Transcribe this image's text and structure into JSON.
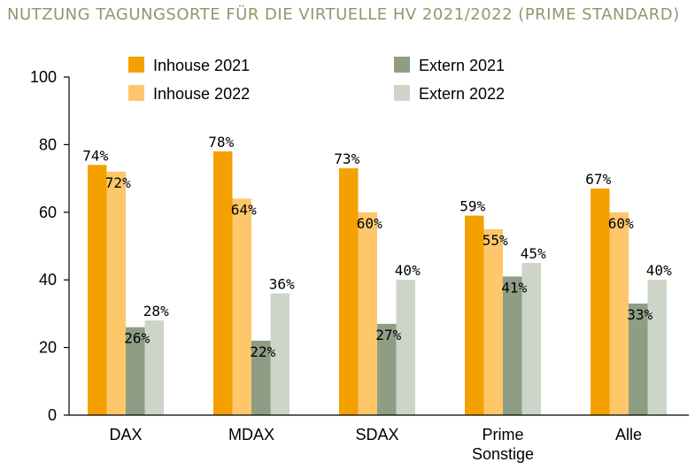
{
  "chart_data": {
    "type": "bar",
    "title": "NUTZUNG TAGUNGSORTE FÜR DIE VIRTUELLE HV 2021/2022 (PRIME STANDARD)",
    "categories": [
      "DAX",
      "MDAX",
      "SDAX",
      "Prime Sonstige",
      "Alle"
    ],
    "category_lines": [
      [
        "DAX"
      ],
      [
        "MDAX"
      ],
      [
        "SDAX"
      ],
      [
        "Prime",
        "Sonstige"
      ],
      [
        "Alle"
      ]
    ],
    "series": [
      {
        "name": "Inhouse 2021",
        "color": "#f4a100",
        "values": [
          74,
          78,
          73,
          59,
          67
        ],
        "labels": [
          "74%",
          "78%",
          "73%",
          "59%",
          "67%"
        ]
      },
      {
        "name": "Inhouse 2022",
        "color": "#fdc76a",
        "values": [
          72,
          64,
          60,
          55,
          60
        ],
        "labels": [
          "72%",
          "64%",
          "60%",
          "55%",
          "60%"
        ]
      },
      {
        "name": "Extern 2021",
        "color": "#8e9e85",
        "values": [
          26,
          22,
          27,
          41,
          33
        ],
        "labels": [
          "26%",
          "22%",
          "27%",
          "41%",
          "33%"
        ]
      },
      {
        "name": "Extern 2022",
        "color": "#cdd4c8",
        "values": [
          28,
          36,
          40,
          45,
          40
        ],
        "labels": [
          "28%",
          "36%",
          "40%",
          "45%",
          "40%"
        ]
      }
    ],
    "ylim": [
      0,
      100
    ],
    "yticks": [
      0,
      20,
      40,
      60,
      80,
      100
    ],
    "xlabel": "",
    "ylabel": "",
    "grid": false,
    "legend": "top"
  }
}
